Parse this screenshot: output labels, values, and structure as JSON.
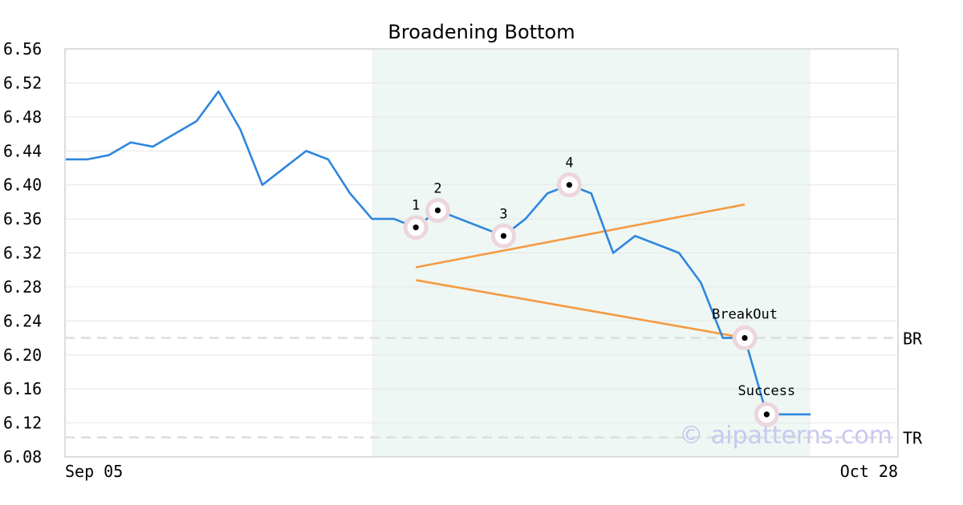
{
  "chart_data": {
    "type": "line",
    "title": "Broadening Bottom",
    "xlabel": "",
    "ylabel": "",
    "x_tick_labels": [
      "Sep 05",
      "Oct 28"
    ],
    "y_ticks": [
      "6.08",
      "6.12",
      "6.16",
      "6.20",
      "6.24",
      "6.28",
      "6.32",
      "6.36",
      "6.40",
      "6.44",
      "6.48",
      "6.52",
      "6.56"
    ],
    "ylim": [
      6.08,
      6.56
    ],
    "grid": true,
    "series": [
      {
        "name": "",
        "color": "#2e86de",
        "values": [
          6.43,
          6.43,
          6.435,
          6.45,
          6.445,
          6.46,
          6.475,
          6.51,
          6.465,
          6.4,
          6.42,
          6.44,
          6.43,
          6.39,
          6.36,
          6.36,
          6.35,
          6.37,
          6.36,
          6.35,
          6.34,
          6.36,
          6.39,
          6.4,
          6.39,
          6.32,
          6.34,
          6.33,
          6.32,
          6.285,
          6.22,
          6.22,
          6.13,
          6.13,
          6.13
        ]
      }
    ],
    "pattern_shading": {
      "from_index": 14,
      "to_index": 34,
      "color": "#eef7f3"
    },
    "trendlines": [
      {
        "color": "#f59a42",
        "from": {
          "index": 16,
          "value": 6.303
        },
        "to": {
          "index": 31,
          "value": 6.377
        }
      },
      {
        "color": "#f59a42",
        "from": {
          "index": 16,
          "value": 6.288
        },
        "to": {
          "index": 31,
          "value": 6.22
        }
      }
    ],
    "pivot_points": [
      {
        "label": "1",
        "index": 16,
        "value": 6.35
      },
      {
        "label": "2",
        "index": 17,
        "value": 6.37
      },
      {
        "label": "3",
        "index": 20,
        "value": 6.34
      },
      {
        "label": "4",
        "index": 23,
        "value": 6.4
      },
      {
        "label": "BreakOut",
        "index": 31,
        "value": 6.22
      },
      {
        "label": "Success",
        "index": 32,
        "value": 6.13
      }
    ],
    "reference_lines": [
      {
        "label": "BR",
        "value": 6.22
      },
      {
        "label": "TR",
        "value": 6.103
      }
    ],
    "watermark": "© aipatterns.com"
  }
}
